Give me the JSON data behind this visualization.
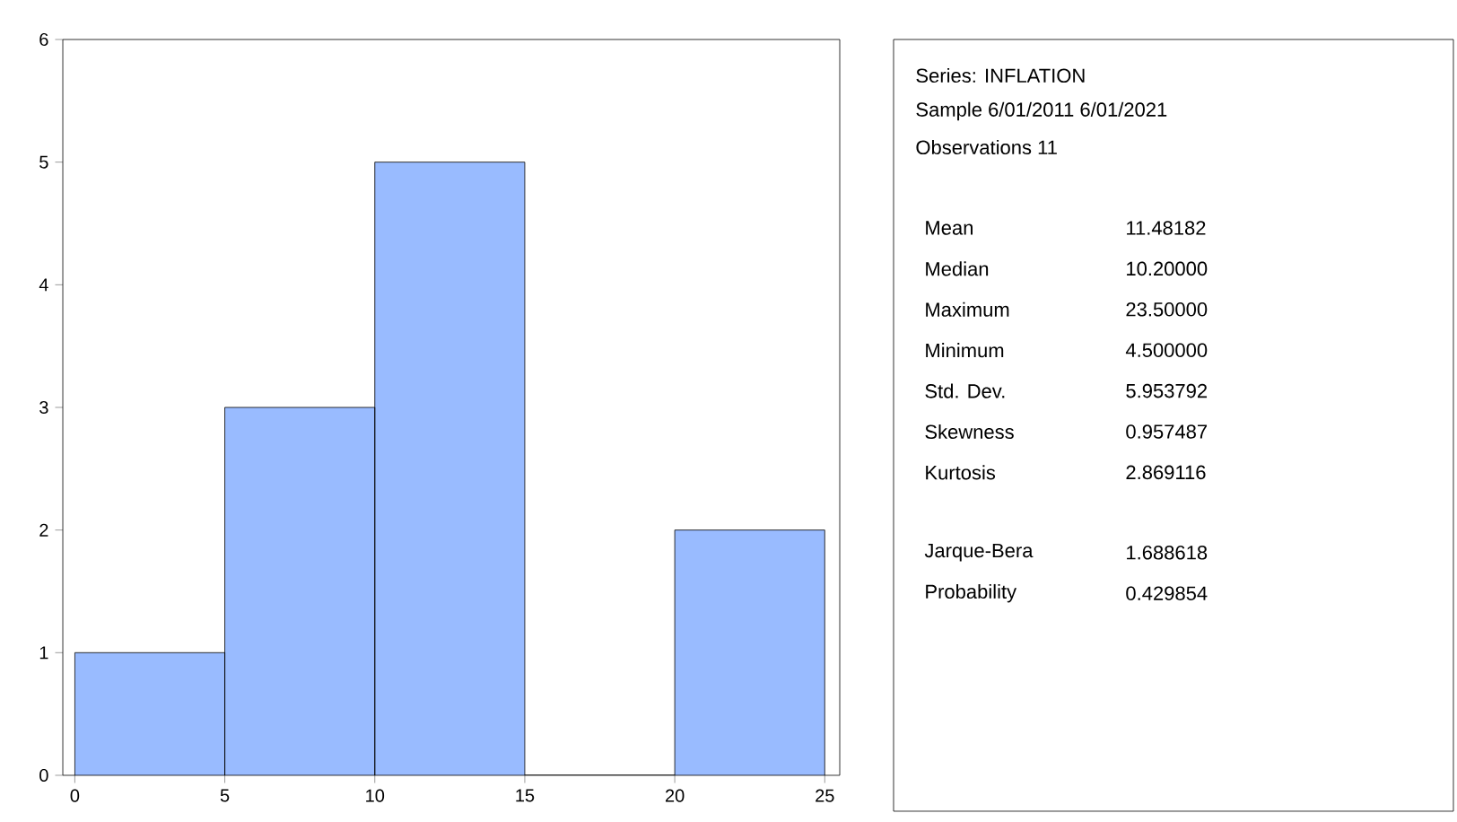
{
  "chart_data": [
    {
      "type": "histogram",
      "bins": [
        0,
        5,
        10,
        15,
        20,
        25
      ],
      "values": [
        1,
        3,
        5,
        0,
        2
      ],
      "color": "#99bbff",
      "xlim": [
        -0.4,
        25.5
      ],
      "ylim": [
        0,
        6
      ],
      "xticks": [
        0,
        5,
        10,
        15,
        20,
        25
      ],
      "yticks": [
        0,
        1,
        2,
        3,
        4,
        5,
        6
      ],
      "grid": false
    },
    {
      "type": "other",
      "annotations": [
        "Series: INFLATION",
        "Sample 6/01/2011 6/01/2021",
        "Observations 11",
        "Mean",
        "11.48182",
        "Median",
        "10.20000",
        "Maximum",
        "23.50000",
        "Minimum",
        "4.500000",
        "Std. Dev.",
        "5.953792",
        "Skewness",
        "0.957487",
        "Kurtosis",
        "2.869116",
        "Jarque-Bera",
        "1.688618",
        "Probability",
        "0.429854"
      ]
    }
  ]
}
